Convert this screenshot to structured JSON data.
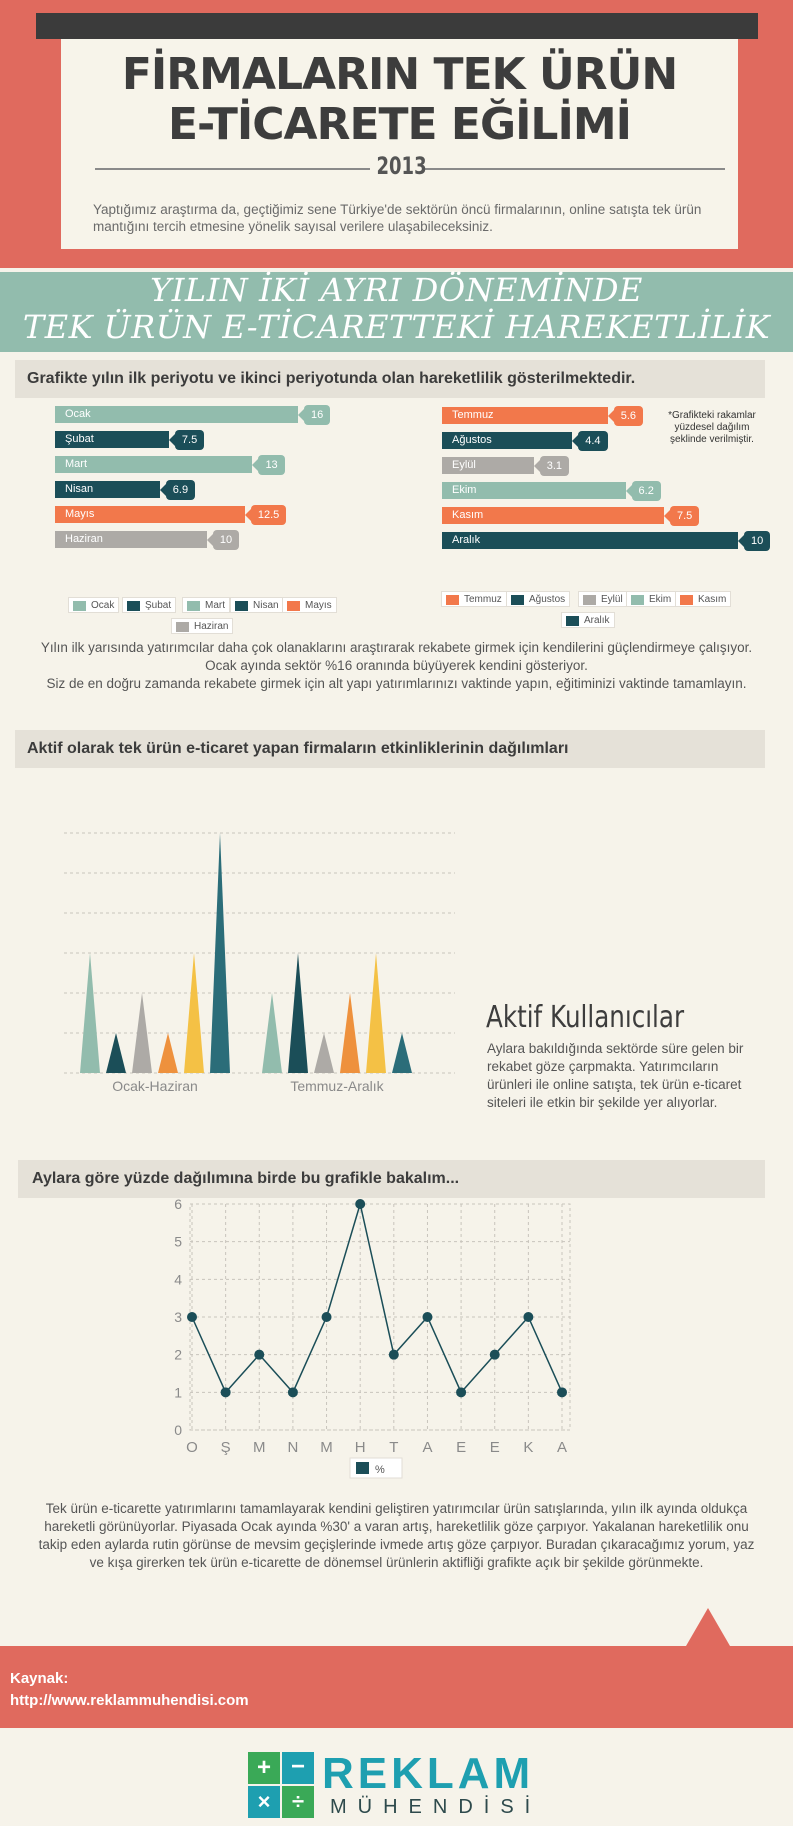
{
  "header": {
    "title_line1": "FİRMALARIN TEK ÜRÜN",
    "title_line2": "E-TİCARETE EĞİLİMİ",
    "year": "2013",
    "intro": "Yaptığımız araştırma da, geçtiğimiz sene Türkiye'de sektörün öncü firmalarının, online satışta tek ürün mantığını tercih etmesine yönelik sayısal verilere ulaşabileceksiniz."
  },
  "banner": {
    "line1": "YILIN İKİ AYRI DÖNEMİNDE",
    "line2": "TEK ÜRÜN E-TİCARETTEKİ HAREKETLİLİK"
  },
  "section1": {
    "heading": "Grafikte yılın ilk periyotu ve ikinci periyotunda olan hareketlilik gösterilmektedir.",
    "note": "*Grafikteki rakamlar yüzdesel dağılım şeklinde verilmiştir.",
    "paragraph_line1": "Yılın ilk yarısında yatırımcılar daha çok olanaklarını araştırarak rekabete girmek için kendilerini güçlendirmeye çalışıyor.",
    "paragraph_line2": "Ocak  ayında sektör %16 oranında büyüyerek kendini gösteriyor.",
    "paragraph_line3": "Siz de en doğru zamanda rekabete girmek için alt yapı yatırımlarınızı vaktinde yapın, eğitiminizi vaktinde tamamlayın."
  },
  "section2": {
    "heading": "Aktif olarak tek ürün e-ticaret yapan firmaların etkinliklerinin dağılımları",
    "side_title": "Aktif Kullanıcılar",
    "side_text": "Aylara bakıldığında sektörde süre gelen bir rekabet göze çarpmakta. Yatırımcıların ürünleri ile online satışta, tek ürün e-ticaret siteleri ile etkin bir şekilde yer alıyorlar."
  },
  "section3": {
    "heading": "Aylara göre yüzde dağılımına birde bu grafikle bakalım...",
    "paragraph": "Tek ürün e-ticarette yatırımlarını tamamlayarak kendini geliştiren yatırımcılar ürün satışlarında, yılın ilk ayında oldukça hareketli görünüyorlar. Piyasada Ocak ayında %30' a varan artış, hareketlilik göze çarpıyor. Yakalanan hareketlilik onu takip eden aylarda rutin görünse de mevsim geçişlerinde ivmede artış göze çarpıyor. Buradan çıkaracağımız yorum, yaz ve kışa girerken  tek ürün e-ticarette de dönemsel ürünlerin aktifliği grafikte açık bir şekilde görünmekte."
  },
  "footer": {
    "source_label": "Kaynak:",
    "source_url": "http://www.reklammuhendisi.com",
    "logo_word": "REKLAM",
    "logo_sub": "MÜHENDİSİ",
    "logo_symbols": [
      "+",
      "−",
      "×",
      "÷"
    ]
  },
  "colors": {
    "coral": "#e06a5e",
    "teal_light": "#92bcad",
    "teal_dark": "#1b4e58",
    "orange": "#f2784b",
    "gray": "#adaaa6",
    "yellow": "#f4c145",
    "amber": "#ee913d",
    "steel": "#2b6d79"
  },
  "chart_data": [
    {
      "type": "bar",
      "orientation": "horizontal",
      "categories": [
        "Ocak",
        "Şubat",
        "Mart",
        "Nisan",
        "Mayıs",
        "Haziran"
      ],
      "values": [
        16,
        7.5,
        13,
        6.9,
        12.5,
        10
      ],
      "value_labels": [
        "16",
        "7.5",
        "13",
        "6.9",
        "12.5",
        "10"
      ],
      "colors": [
        "#92bcad",
        "#1b4e58",
        "#92bcad",
        "#1b4e58",
        "#f2784b",
        "#adaaa6"
      ],
      "xlim": [
        0,
        16
      ],
      "legend": "bottom",
      "legend_entries": [
        "Ocak",
        "Şubat",
        "Mart",
        "Nisan",
        "Mayıs",
        "Haziran"
      ]
    },
    {
      "type": "bar",
      "orientation": "horizontal",
      "categories": [
        "Temmuz",
        "Ağustos",
        "Eylül",
        "Ekim",
        "Kasım",
        "Aralık"
      ],
      "values": [
        5.6,
        4.4,
        3.1,
        6.2,
        7.5,
        10
      ],
      "value_labels": [
        "5.6",
        "4.4",
        "3.1",
        "6.2",
        "7.5",
        "10"
      ],
      "colors": [
        "#f2784b",
        "#1b4e58",
        "#adaaa6",
        "#92bcad",
        "#f2784b",
        "#1b4e58"
      ],
      "xlim": [
        0,
        10
      ],
      "legend": "bottom",
      "legend_entries": [
        "Temmuz",
        "Ağustos",
        "Eylül",
        "Ekim",
        "Kasım",
        "Aralık"
      ]
    },
    {
      "type": "bar",
      "shape": "triangle",
      "categories": [
        "Ocak-Haziran",
        "Temmuz-Aralık"
      ],
      "series_values": [
        [
          30,
          10,
          20,
          10,
          30,
          60
        ],
        [
          20,
          30,
          10,
          20,
          30,
          10
        ]
      ],
      "colors": [
        "#92bcad",
        "#1b4e58",
        "#adaaa6",
        "#ee913d",
        "#f4c145",
        "#2b6d79"
      ],
      "ylim": [
        0,
        60
      ],
      "grid": true
    },
    {
      "type": "line",
      "x": [
        "O",
        "Ş",
        "M",
        "N",
        "M",
        "H",
        "T",
        "A",
        "E",
        "E",
        "K",
        "A"
      ],
      "series": [
        {
          "name": "%",
          "values": [
            3,
            1,
            2,
            1,
            3,
            6,
            2,
            3,
            1,
            2,
            3,
            1
          ]
        }
      ],
      "yticks": [
        "0",
        "1",
        "2",
        "3",
        "4",
        "5",
        "6"
      ],
      "ylim": [
        0,
        6
      ],
      "grid": true,
      "legend": "bottom",
      "color": "#1b4e58"
    }
  ]
}
